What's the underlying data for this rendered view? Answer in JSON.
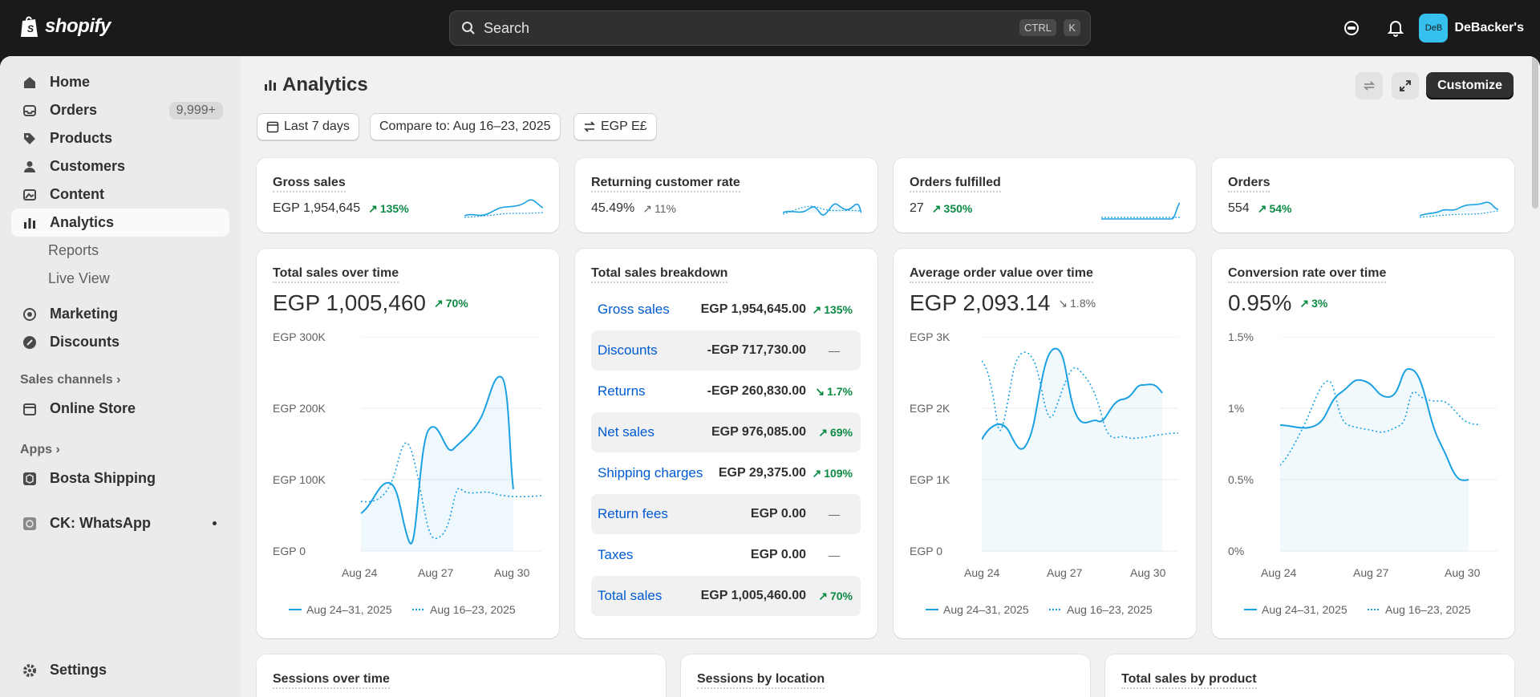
{
  "brand": {
    "name": "shopify"
  },
  "search": {
    "placeholder": "Search",
    "key1": "CTRL",
    "key2": "K"
  },
  "store": {
    "avatar_initials": "DeB",
    "name": "DeBacker's"
  },
  "sidebar": {
    "items": [
      {
        "label": "Home",
        "icon": "home-icon"
      },
      {
        "label": "Orders",
        "icon": "inbox-icon",
        "badge": "9,999+"
      },
      {
        "label": "Products",
        "icon": "tag-icon"
      },
      {
        "label": "Customers",
        "icon": "person-icon"
      },
      {
        "label": "Content",
        "icon": "image-icon"
      },
      {
        "label": "Analytics",
        "icon": "bar-chart-icon",
        "active": true
      },
      {
        "label": "Reports",
        "sub": true
      },
      {
        "label": "Live View",
        "sub": true
      },
      {
        "label": "Marketing",
        "icon": "target-icon"
      },
      {
        "label": "Discounts",
        "icon": "discount-icon"
      }
    ],
    "sales_channels_label": "Sales channels",
    "online_store": "Online Store",
    "apps_label": "Apps",
    "bosta": "Bosta Shipping",
    "ck": "CK: WhatsApp",
    "settings": "Settings"
  },
  "header": {
    "title": "Analytics",
    "customize": "Customize"
  },
  "filters": {
    "range": "Last 7 days",
    "compare": "Compare to: Aug 16–23, 2025",
    "currency": "EGP E£"
  },
  "kpis": [
    {
      "label": "Gross sales",
      "value": "EGP 1,954,645",
      "change": "135%",
      "trend": "up"
    },
    {
      "label": "Returning customer rate",
      "value": "45.49%",
      "change": "11%",
      "trend": "neutral"
    },
    {
      "label": "Orders fulfilled",
      "value": "27",
      "change": "350%",
      "trend": "up"
    },
    {
      "label": "Orders",
      "value": "554",
      "change": "54%",
      "trend": "up"
    }
  ],
  "total_sales": {
    "label": "Total sales over time",
    "value": "EGP 1,005,460",
    "change": "70%",
    "yticks": [
      "EGP 300K",
      "EGP 200K",
      "EGP 100K",
      "EGP 0"
    ]
  },
  "breakdown": {
    "label": "Total sales breakdown",
    "rows": [
      {
        "name": "Gross sales",
        "amount": "EGP 1,954,645.00",
        "change": "135%",
        "trend": "up"
      },
      {
        "name": "Discounts",
        "amount": "-EGP 717,730.00",
        "change": "—",
        "trend": "none"
      },
      {
        "name": "Returns",
        "amount": "-EGP 260,830.00",
        "change": "1.7%",
        "trend": "down-good"
      },
      {
        "name": "Net sales",
        "amount": "EGP 976,085.00",
        "change": "69%",
        "trend": "up"
      },
      {
        "name": "Shipping charges",
        "amount": "EGP 29,375.00",
        "change": "109%",
        "trend": "up"
      },
      {
        "name": "Return fees",
        "amount": "EGP 0.00",
        "change": "—",
        "trend": "none"
      },
      {
        "name": "Taxes",
        "amount": "EGP 0.00",
        "change": "—",
        "trend": "none"
      },
      {
        "name": "Total sales",
        "amount": "EGP 1,005,460.00",
        "change": "70%",
        "trend": "up"
      }
    ]
  },
  "aov": {
    "label": "Average order value over time",
    "value": "EGP 2,093.14",
    "change": "1.8%",
    "yticks": [
      "EGP 3K",
      "EGP 2K",
      "EGP 1K",
      "EGP 0"
    ]
  },
  "conversion": {
    "label": "Conversion rate over time",
    "value": "0.95%",
    "change": "3%",
    "yticks": [
      "1.5%",
      "1%",
      "0.5%",
      "0%"
    ]
  },
  "xticks": [
    "Aug 24",
    "Aug 27",
    "Aug 30"
  ],
  "legend": {
    "current": "Aug 24–31, 2025",
    "previous": "Aug 16–23, 2025"
  },
  "bottom_cards": [
    "Sessions over time",
    "Sessions by location",
    "Total sales by product"
  ],
  "colors": {
    "accent": "#1ba1e2",
    "positive": "#0a8a43",
    "link": "#005bd3"
  }
}
